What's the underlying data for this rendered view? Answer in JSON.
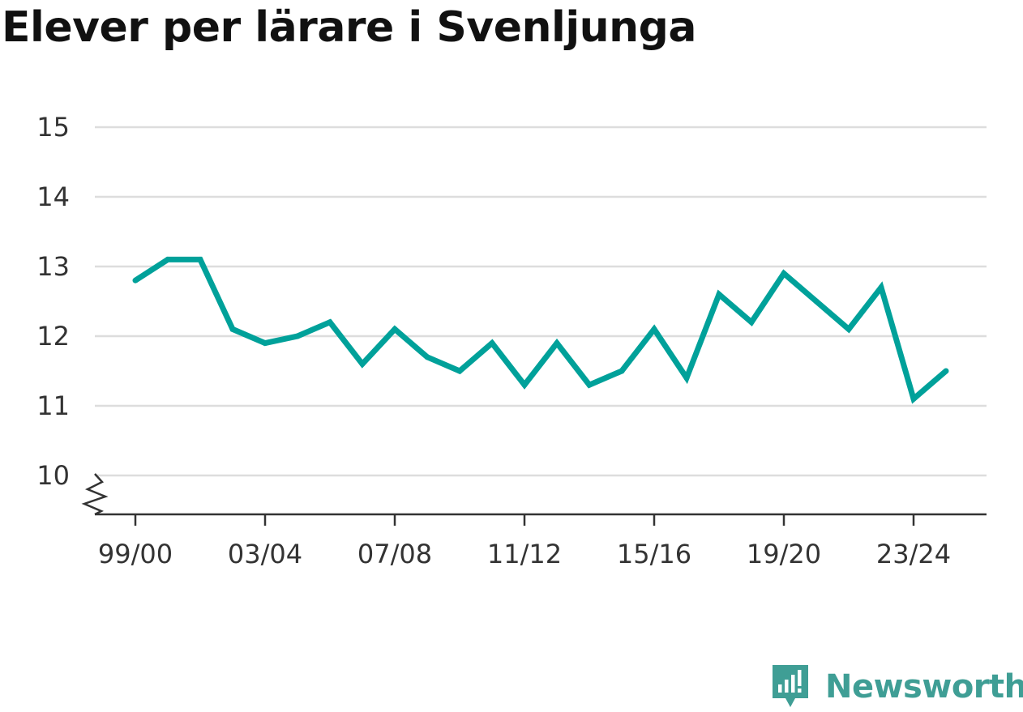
{
  "title": "Elever per lärare i Svenljunga",
  "brand": {
    "name": "Newsworthy",
    "color": "#3f9e95"
  },
  "chart_data": {
    "type": "line",
    "title": "Elever per lärare i Svenljunga",
    "xlabel": "",
    "ylabel": "",
    "ylim": [
      10,
      15
    ],
    "yticks": [
      10,
      11,
      12,
      13,
      14,
      15
    ],
    "y_axis_break": true,
    "grid": true,
    "x_tick_labels": [
      "99/00",
      "03/04",
      "07/08",
      "11/12",
      "15/16",
      "19/20",
      "23/24"
    ],
    "x": [
      "99/00",
      "00/01",
      "01/02",
      "02/03",
      "03/04",
      "04/05",
      "05/06",
      "06/07",
      "07/08",
      "08/09",
      "09/10",
      "10/11",
      "11/12",
      "12/13",
      "13/14",
      "14/15",
      "15/16",
      "16/17",
      "17/18",
      "18/19",
      "19/20",
      "20/21",
      "21/22",
      "22/23",
      "23/24",
      "24/25"
    ],
    "series": [
      {
        "color": "#00a19a",
        "values": [
          12.8,
          13.1,
          13.1,
          12.1,
          11.9,
          12.0,
          12.2,
          11.6,
          12.1,
          11.7,
          11.5,
          11.9,
          11.3,
          11.9,
          11.3,
          11.5,
          12.1,
          11.4,
          12.6,
          12.2,
          12.9,
          12.5,
          12.1,
          12.7,
          11.1,
          11.5
        ]
      }
    ]
  }
}
